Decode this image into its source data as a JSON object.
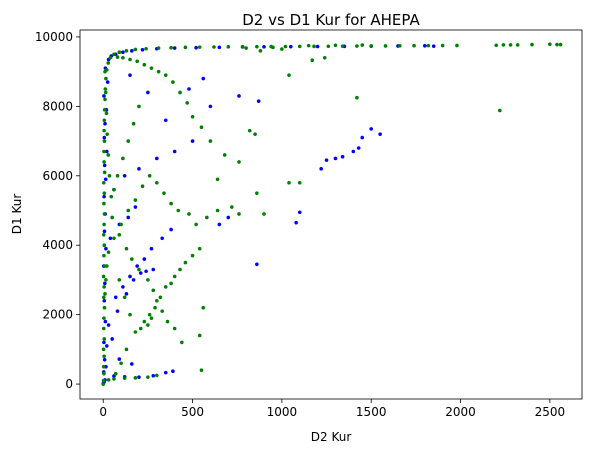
{
  "chart_data": {
    "type": "scatter",
    "title": "D2 vs D1 Kur for AHEPA",
    "xlabel": "D2 Kur",
    "ylabel": "D1 Kur",
    "xlim": [
      -130,
      2680
    ],
    "ylim": [
      -430,
      10200
    ],
    "xticks": [
      0,
      500,
      1000,
      1500,
      2000,
      2500
    ],
    "yticks": [
      0,
      2000,
      4000,
      6000,
      8000,
      10000
    ],
    "grid": false,
    "legend": "none",
    "colors": {
      "series_a": "#0000ff",
      "series_b": "#008000",
      "axis": "#000000"
    },
    "series": [
      {
        "color": "#0000ff",
        "points": [
          [
            0,
            20
          ],
          [
            5,
            60
          ],
          [
            10,
            120
          ],
          [
            3,
            350
          ],
          [
            8,
            700
          ],
          [
            4,
            1200
          ],
          [
            12,
            1800
          ],
          [
            6,
            2400
          ],
          [
            9,
            2900
          ],
          [
            3,
            3400
          ],
          [
            15,
            3900
          ],
          [
            7,
            4400
          ],
          [
            11,
            4900
          ],
          [
            5,
            5400
          ],
          [
            14,
            5900
          ],
          [
            8,
            6300
          ],
          [
            20,
            6700
          ],
          [
            6,
            7100
          ],
          [
            10,
            7500
          ],
          [
            18,
            7900
          ],
          [
            4,
            8300
          ],
          [
            25,
            8700
          ],
          [
            12,
            9100
          ],
          [
            30,
            9350
          ],
          [
            45,
            9450
          ],
          [
            70,
            9500
          ],
          [
            110,
            9560
          ],
          [
            160,
            9600
          ],
          [
            220,
            9630
          ],
          [
            300,
            9660
          ],
          [
            400,
            9680
          ],
          [
            520,
            9690
          ],
          [
            650,
            9700
          ],
          [
            780,
            9710
          ],
          [
            900,
            9715
          ],
          [
            1050,
            9720
          ],
          [
            1200,
            9725
          ],
          [
            1350,
            9730
          ],
          [
            1500,
            9735
          ],
          [
            1650,
            9740
          ],
          [
            1800,
            9745
          ],
          [
            1850,
            9735
          ],
          [
            60,
            230
          ],
          [
            120,
            210
          ],
          [
            200,
            200
          ],
          [
            280,
            240
          ],
          [
            350,
            330
          ],
          [
            390,
            370
          ],
          [
            90,
            720
          ],
          [
            160,
            580
          ],
          [
            50,
            1300
          ],
          [
            80,
            2100
          ],
          [
            130,
            2600
          ],
          [
            170,
            3000
          ],
          [
            210,
            3200
          ],
          [
            240,
            3250
          ],
          [
            280,
            3300
          ],
          [
            40,
            4200
          ],
          [
            90,
            4600
          ],
          [
            140,
            4800
          ],
          [
            180,
            5100
          ],
          [
            60,
            5600
          ],
          [
            120,
            6000
          ],
          [
            200,
            6200
          ],
          [
            300,
            6500
          ],
          [
            400,
            6700
          ],
          [
            500,
            7000
          ],
          [
            350,
            7600
          ],
          [
            250,
            8400
          ],
          [
            150,
            8900
          ],
          [
            480,
            8500
          ],
          [
            560,
            8800
          ],
          [
            600,
            8000
          ],
          [
            760,
            8300
          ],
          [
            870,
            8150
          ],
          [
            860,
            3450
          ],
          [
            1100,
            4950
          ],
          [
            1220,
            6200
          ],
          [
            1300,
            6500
          ],
          [
            1340,
            6550
          ],
          [
            1400,
            6700
          ],
          [
            1430,
            6800
          ],
          [
            1450,
            7100
          ],
          [
            1500,
            7350
          ],
          [
            1550,
            7200
          ],
          [
            1250,
            6450
          ],
          [
            1080,
            4650
          ],
          [
            700,
            4800
          ],
          [
            650,
            4600
          ],
          [
            380,
            4450
          ],
          [
            330,
            4200
          ],
          [
            270,
            3900
          ],
          [
            230,
            3600
          ],
          [
            190,
            3400
          ],
          [
            150,
            3100
          ],
          [
            110,
            2800
          ],
          [
            70,
            2500
          ],
          [
            30,
            1700
          ],
          [
            20,
            1100
          ],
          [
            15,
            500
          ]
        ]
      },
      {
        "color": "#008000",
        "points": [
          [
            0,
            0
          ],
          [
            2,
            100
          ],
          [
            4,
            300
          ],
          [
            3,
            500
          ],
          [
            5,
            800
          ],
          [
            2,
            1000
          ],
          [
            6,
            1300
          ],
          [
            3,
            1600
          ],
          [
            4,
            1900
          ],
          [
            7,
            2200
          ],
          [
            3,
            2500
          ],
          [
            5,
            2800
          ],
          [
            2,
            3100
          ],
          [
            8,
            3400
          ],
          [
            4,
            3700
          ],
          [
            6,
            4000
          ],
          [
            3,
            4300
          ],
          [
            5,
            4600
          ],
          [
            7,
            4900
          ],
          [
            4,
            5200
          ],
          [
            6,
            5500
          ],
          [
            3,
            5800
          ],
          [
            8,
            6100
          ],
          [
            5,
            6400
          ],
          [
            4,
            6700
          ],
          [
            7,
            7000
          ],
          [
            5,
            7300
          ],
          [
            6,
            7600
          ],
          [
            8,
            7900
          ],
          [
            10,
            8200
          ],
          [
            12,
            8500
          ],
          [
            15,
            8800
          ],
          [
            20,
            9050
          ],
          [
            28,
            9250
          ],
          [
            40,
            9400
          ],
          [
            60,
            9500
          ],
          [
            90,
            9560
          ],
          [
            130,
            9600
          ],
          [
            180,
            9640
          ],
          [
            240,
            9660
          ],
          [
            310,
            9680
          ],
          [
            380,
            9690
          ],
          [
            460,
            9700
          ],
          [
            540,
            9705
          ],
          [
            620,
            9710
          ],
          [
            700,
            9715
          ],
          [
            780,
            9718
          ],
          [
            860,
            9720
          ],
          [
            940,
            9722
          ],
          [
            1020,
            9725
          ],
          [
            1100,
            9728
          ],
          [
            1180,
            9730
          ],
          [
            1260,
            9732
          ],
          [
            1340,
            9735
          ],
          [
            1420,
            9738
          ],
          [
            1500,
            9740
          ],
          [
            1580,
            9742
          ],
          [
            1660,
            9745
          ],
          [
            1740,
            9748
          ],
          [
            1820,
            9750
          ],
          [
            1900,
            9752
          ],
          [
            1980,
            9755
          ],
          [
            2200,
            9760
          ],
          [
            2240,
            9770
          ],
          [
            2280,
            9770
          ],
          [
            2320,
            9770
          ],
          [
            2400,
            9780
          ],
          [
            2500,
            9790
          ],
          [
            2540,
            9780
          ],
          [
            2560,
            9780
          ],
          [
            2220,
            7880
          ],
          [
            1420,
            8250
          ],
          [
            1170,
            9330
          ],
          [
            1240,
            9400
          ],
          [
            1040,
            8900
          ],
          [
            820,
            7300
          ],
          [
            850,
            7200
          ],
          [
            760,
            6400
          ],
          [
            680,
            6600
          ],
          [
            640,
            5900
          ],
          [
            720,
            5100
          ],
          [
            760,
            4900
          ],
          [
            640,
            5000
          ],
          [
            580,
            4800
          ],
          [
            520,
            4600
          ],
          [
            480,
            4900
          ],
          [
            420,
            5000
          ],
          [
            380,
            5200
          ],
          [
            340,
            5500
          ],
          [
            300,
            5800
          ],
          [
            260,
            6000
          ],
          [
            220,
            5700
          ],
          [
            180,
            5300
          ],
          [
            140,
            5000
          ],
          [
            100,
            4600
          ],
          [
            60,
            4200
          ],
          [
            30,
            3800
          ],
          [
            20,
            3400
          ],
          [
            15,
            3000
          ],
          [
            10,
            2600
          ],
          [
            230,
            1800
          ],
          [
            250,
            1700
          ],
          [
            270,
            1900
          ],
          [
            210,
            1600
          ],
          [
            260,
            2000
          ],
          [
            290,
            2200
          ],
          [
            320,
            2500
          ],
          [
            350,
            2800
          ],
          [
            380,
            2900
          ],
          [
            400,
            3100
          ],
          [
            430,
            3300
          ],
          [
            460,
            3500
          ],
          [
            500,
            3700
          ],
          [
            540,
            3900
          ],
          [
            560,
            2200
          ],
          [
            540,
            1400
          ],
          [
            440,
            1200
          ],
          [
            400,
            1600
          ],
          [
            360,
            1800
          ],
          [
            330,
            2100
          ],
          [
            300,
            2400
          ],
          [
            280,
            2700
          ],
          [
            250,
            3000
          ],
          [
            200,
            3300
          ],
          [
            160,
            3600
          ],
          [
            130,
            3900
          ],
          [
            90,
            4300
          ],
          [
            50,
            4800
          ],
          [
            45,
            5400
          ],
          [
            35,
            6000
          ],
          [
            28,
            6600
          ],
          [
            22,
            7200
          ],
          [
            18,
            7800
          ],
          [
            14,
            8400
          ],
          [
            10,
            9000
          ],
          [
            550,
            400
          ],
          [
            300,
            250
          ],
          [
            250,
            200
          ],
          [
            180,
            180
          ],
          [
            120,
            170
          ],
          [
            60,
            150
          ],
          [
            30,
            120
          ],
          [
            950,
            9700
          ],
          [
            1000,
            9650
          ],
          [
            880,
            9600
          ],
          [
            800,
            9680
          ],
          [
            860,
            5500
          ],
          [
            900,
            4900
          ],
          [
            1040,
            5800
          ],
          [
            1100,
            5800
          ],
          [
            600,
            7000
          ],
          [
            550,
            7400
          ],
          [
            500,
            7700
          ],
          [
            470,
            8100
          ],
          [
            430,
            8400
          ],
          [
            390,
            8700
          ],
          [
            350,
            8900
          ],
          [
            310,
            9000
          ],
          [
            270,
            9100
          ],
          [
            230,
            9200
          ],
          [
            190,
            9300
          ],
          [
            150,
            9350
          ],
          [
            110,
            9400
          ],
          [
            80,
            9420
          ],
          [
            200,
            8000
          ],
          [
            170,
            7500
          ],
          [
            140,
            7000
          ],
          [
            110,
            6500
          ],
          [
            80,
            6000
          ],
          [
            60,
            5600
          ],
          [
            90,
            3000
          ],
          [
            120,
            2500
          ],
          [
            150,
            2000
          ],
          [
            180,
            1500
          ],
          [
            130,
            1000
          ],
          [
            100,
            600
          ],
          [
            70,
            300
          ],
          [
            1150,
            9750
          ],
          [
            1300,
            9760
          ],
          [
            1450,
            9765
          ]
        ]
      }
    ]
  }
}
